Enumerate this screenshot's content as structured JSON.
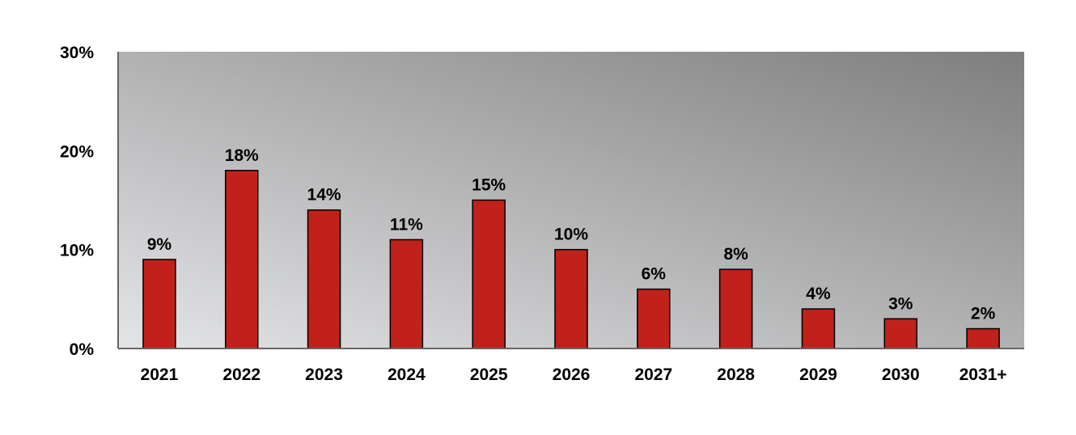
{
  "chart_data": {
    "type": "bar",
    "title": "",
    "xlabel": "",
    "ylabel": "",
    "categories": [
      "2021",
      "2022",
      "2023",
      "2024",
      "2025",
      "2026",
      "2027",
      "2028",
      "2029",
      "2030",
      "2031+"
    ],
    "values": [
      9,
      18,
      14,
      11,
      15,
      10,
      6,
      8,
      4,
      3,
      2
    ],
    "data_labels": [
      "9%",
      "18%",
      "14%",
      "11%",
      "15%",
      "10%",
      "6%",
      "8%",
      "4%",
      "3%",
      "2%"
    ],
    "ylim": [
      0,
      30
    ],
    "yticks": [
      0,
      10,
      20,
      30
    ],
    "ytick_labels": [
      "0%",
      "10%",
      "20%",
      "30%"
    ],
    "grid": false,
    "legend": "none",
    "colors": {
      "bar": "#c0211a",
      "bar_outline": "#000000",
      "plot_bg_light": "#e4e5e7",
      "plot_bg_dark": "#7e7e7e"
    }
  }
}
